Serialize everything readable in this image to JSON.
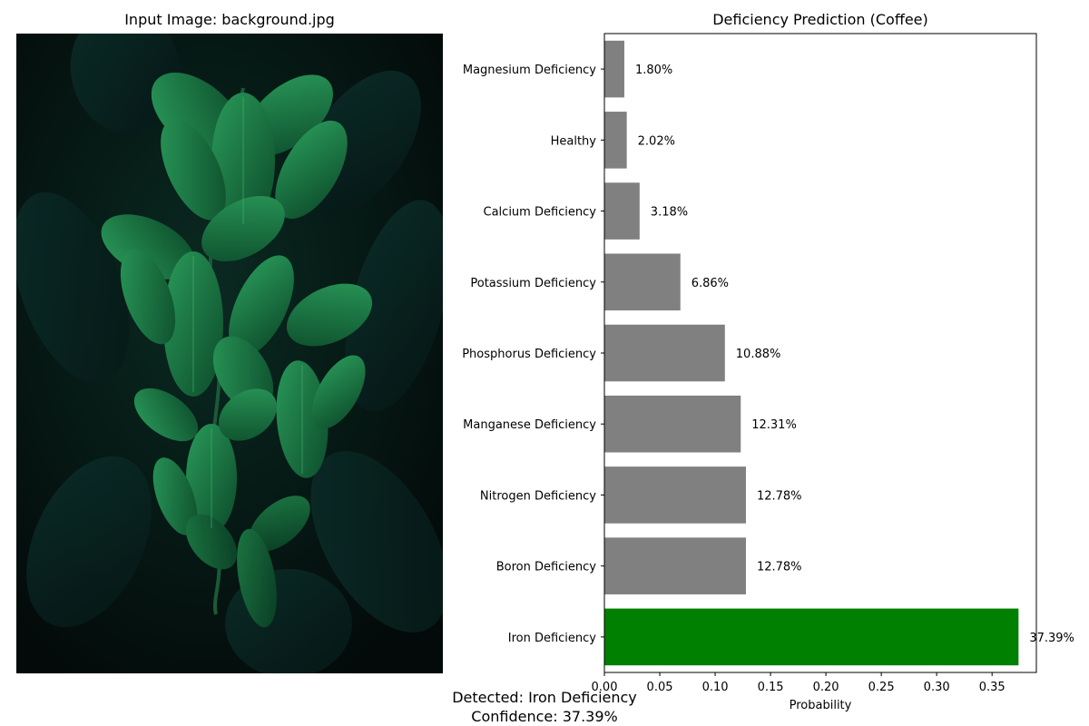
{
  "image_panel": {
    "title": "Input Image: background.jpg"
  },
  "chart_data": {
    "type": "bar",
    "orientation": "horizontal",
    "title": "Deficiency Prediction (Coffee)",
    "xlabel": "Probability",
    "ylabel": "",
    "xlim": [
      0,
      0.39
    ],
    "xticks": [
      "0.00",
      "0.05",
      "0.10",
      "0.15",
      "0.20",
      "0.25",
      "0.30",
      "0.35"
    ],
    "categories": [
      "Iron Deficiency",
      "Boron Deficiency",
      "Nitrogen Deficiency",
      "Manganese Deficiency",
      "Phosphorus Deficiency",
      "Potassium Deficiency",
      "Calcium Deficiency",
      "Healthy",
      "Magnesium Deficiency"
    ],
    "values": [
      0.3739,
      0.1278,
      0.1278,
      0.1231,
      0.1088,
      0.0686,
      0.0318,
      0.0202,
      0.018
    ],
    "value_labels": [
      "37.39%",
      "12.78%",
      "12.78%",
      "12.31%",
      "10.88%",
      "6.86%",
      "3.18%",
      "2.02%",
      "1.80%"
    ],
    "highlight_color": "#008000",
    "bar_color": "#808080",
    "grid": false
  },
  "result": {
    "detected": "Detected: Iron Deficiency",
    "confidence": "Confidence: 37.39%"
  }
}
